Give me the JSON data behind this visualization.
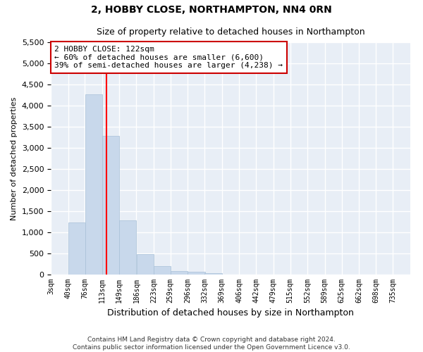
{
  "title": "2, HOBBY CLOSE, NORTHAMPTON, NN4 0RN",
  "subtitle": "Size of property relative to detached houses in Northampton",
  "xlabel": "Distribution of detached houses by size in Northampton",
  "ylabel": "Number of detached properties",
  "footer_line1": "Contains HM Land Registry data © Crown copyright and database right 2024.",
  "footer_line2": "Contains public sector information licensed under the Open Government Licence v3.0.",
  "bar_color": "#c8d8eb",
  "bar_edge_color": "#a8c0d8",
  "red_line_x": 122,
  "annotation_title": "2 HOBBY CLOSE: 122sqm",
  "annotation_line1": "← 60% of detached houses are smaller (6,600)",
  "annotation_line2": "39% of semi-detached houses are larger (4,238) →",
  "annotation_box_color": "#ffffff",
  "annotation_box_edge": "#cc0000",
  "categories": [
    "3sqm",
    "40sqm",
    "76sqm",
    "113sqm",
    "149sqm",
    "186sqm",
    "223sqm",
    "259sqm",
    "296sqm",
    "332sqm",
    "369sqm",
    "406sqm",
    "442sqm",
    "479sqm",
    "515sqm",
    "552sqm",
    "589sqm",
    "625sqm",
    "662sqm",
    "698sqm",
    "735sqm"
  ],
  "bin_starts": [
    3,
    40,
    76,
    113,
    149,
    186,
    223,
    259,
    296,
    332,
    369,
    406,
    442,
    479,
    515,
    552,
    589,
    625,
    662,
    698,
    735
  ],
  "bin_width": 37,
  "values": [
    0,
    1230,
    4270,
    3280,
    1290,
    490,
    195,
    90,
    60,
    35,
    0,
    0,
    0,
    0,
    0,
    0,
    0,
    0,
    0,
    0,
    0
  ],
  "ylim": [
    0,
    5500
  ],
  "yticks": [
    0,
    500,
    1000,
    1500,
    2000,
    2500,
    3000,
    3500,
    4000,
    4500,
    5000,
    5500
  ],
  "bg_color": "#ffffff",
  "plot_bg_color": "#e8eef6"
}
